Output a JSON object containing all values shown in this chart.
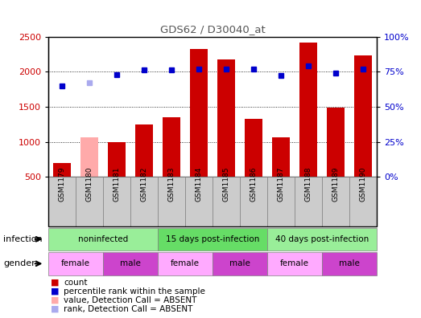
{
  "title": "GDS62 / D30040_at",
  "samples": [
    "GSM1179",
    "GSM1180",
    "GSM1181",
    "GSM1182",
    "GSM1183",
    "GSM1184",
    "GSM1185",
    "GSM1186",
    "GSM1187",
    "GSM1188",
    "GSM1189",
    "GSM1190"
  ],
  "count_values": [
    700,
    1060,
    1000,
    1250,
    1350,
    2320,
    2170,
    1330,
    1060,
    2410,
    1490,
    2230
  ],
  "count_absent": [
    false,
    true,
    false,
    false,
    false,
    false,
    false,
    false,
    false,
    false,
    false,
    false
  ],
  "rank_values": [
    65,
    67,
    73,
    76,
    76,
    77,
    77,
    77,
    72,
    79,
    74,
    77
  ],
  "rank_absent": [
    false,
    true,
    false,
    false,
    false,
    false,
    false,
    false,
    false,
    false,
    false,
    false
  ],
  "ylim_left": [
    500,
    2500
  ],
  "ylim_right": [
    0,
    100
  ],
  "yticks_left": [
    500,
    1000,
    1500,
    2000,
    2500
  ],
  "yticks_right": [
    0,
    25,
    50,
    75,
    100
  ],
  "ytick_labels_right": [
    "0%",
    "25%",
    "50%",
    "75%",
    "100%"
  ],
  "count_color": "#cc0000",
  "count_absent_color": "#ffaaaa",
  "rank_color": "#0000cc",
  "rank_absent_color": "#aaaaee",
  "bar_width": 0.65,
  "infection_groups": [
    {
      "label": "noninfected",
      "start": 0,
      "end": 3
    },
    {
      "label": "15 days post-infection",
      "start": 4,
      "end": 7
    },
    {
      "label": "40 days post-infection",
      "start": 8,
      "end": 11
    }
  ],
  "gender_groups": [
    {
      "label": "female",
      "start": 0,
      "end": 1,
      "color": "#ffaaff"
    },
    {
      "label": "male",
      "start": 2,
      "end": 3,
      "color": "#cc44cc"
    },
    {
      "label": "female",
      "start": 4,
      "end": 5,
      "color": "#ffaaff"
    },
    {
      "label": "male",
      "start": 6,
      "end": 7,
      "color": "#cc44cc"
    },
    {
      "label": "female",
      "start": 8,
      "end": 9,
      "color": "#ffaaff"
    },
    {
      "label": "male",
      "start": 10,
      "end": 11,
      "color": "#cc44cc"
    }
  ],
  "infection_color": "#99ee99",
  "infection_alt_color": "#66dd66",
  "legend_items": [
    {
      "label": "count",
      "color": "#cc0000"
    },
    {
      "label": "percentile rank within the sample",
      "color": "#0000cc"
    },
    {
      "label": "value, Detection Call = ABSENT",
      "color": "#ffaaaa"
    },
    {
      "label": "rank, Detection Call = ABSENT",
      "color": "#aaaaee"
    }
  ],
  "infection_label": "infection",
  "gender_label": "gender",
  "bg_color": "#ffffff",
  "grid_color": "#000000",
  "xtick_bg": "#cccccc"
}
